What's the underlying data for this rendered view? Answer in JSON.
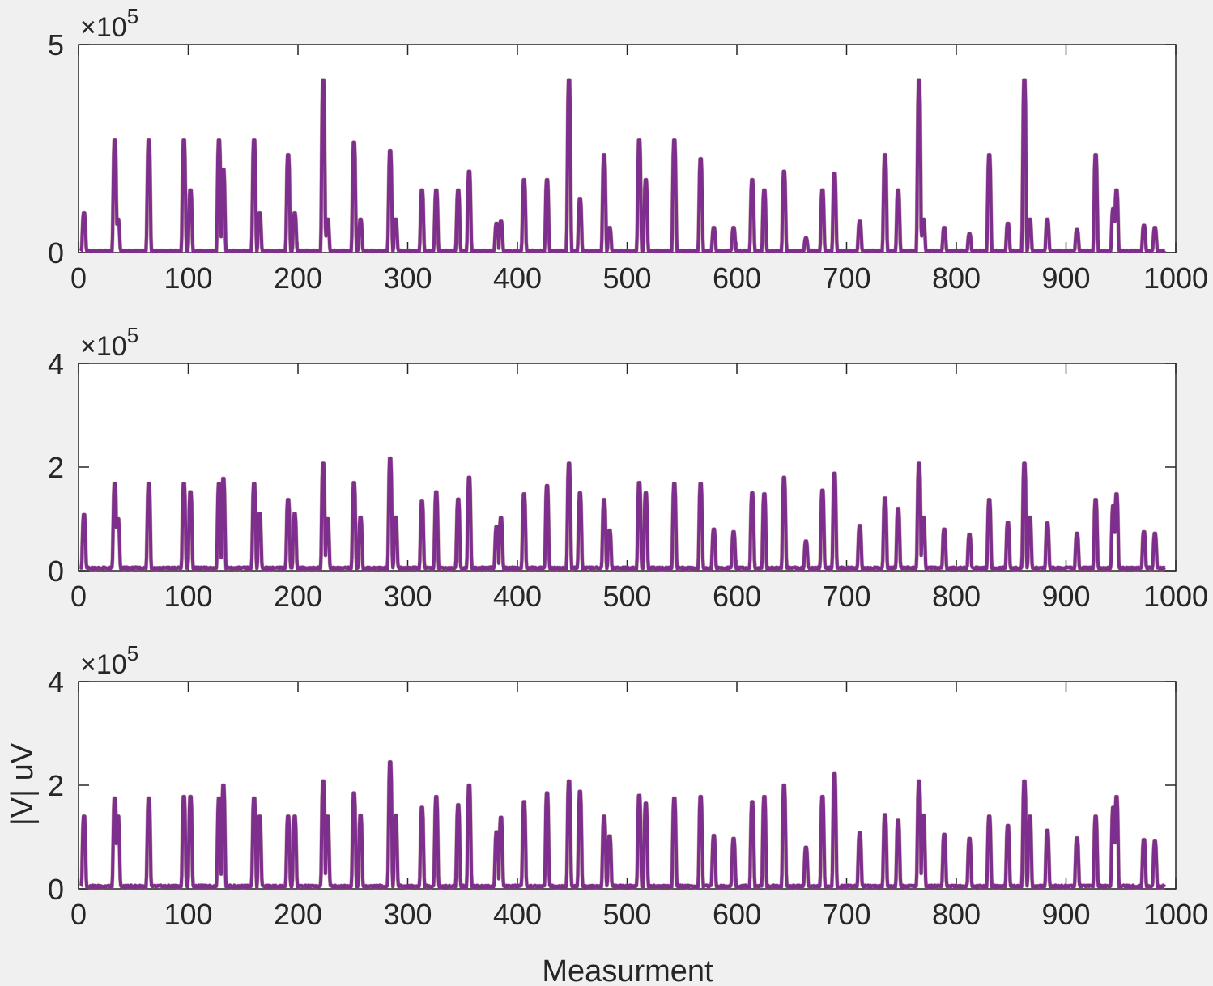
{
  "chart_data": [
    {
      "type": "line",
      "xlim": [
        0,
        1000
      ],
      "ylim": [
        0,
        500000
      ],
      "xticks": [
        "0",
        "100",
        "200",
        "300",
        "400",
        "500",
        "600",
        "700",
        "800",
        "900",
        "1000"
      ],
      "yticks": [
        "0",
        "5"
      ],
      "exponent_base": "×10",
      "exponent_power": "5",
      "xlabel": "",
      "ylabel": "",
      "series": [
        {
          "color": "#7e2f8e",
          "baseline": 4000,
          "peaks": [
            [
              5,
              95000
            ],
            [
              33,
              270000
            ],
            [
              36,
              80000
            ],
            [
              64,
              270000
            ],
            [
              96,
              270000
            ],
            [
              102,
              150000
            ],
            [
              128,
              270000
            ],
            [
              132,
              200000
            ],
            [
              160,
              270000
            ],
            [
              165,
              95000
            ],
            [
              191,
              235000
            ],
            [
              197,
              95000
            ],
            [
              223,
              415000
            ],
            [
              227,
              80000
            ],
            [
              251,
              265000
            ],
            [
              257,
              80000
            ],
            [
              284,
              245000
            ],
            [
              289,
              80000
            ],
            [
              313,
              150000
            ],
            [
              326,
              150000
            ],
            [
              346,
              150000
            ],
            [
              356,
              195000
            ],
            [
              381,
              70000
            ],
            [
              385,
              75000
            ],
            [
              406,
              175000
            ],
            [
              427,
              175000
            ],
            [
              447,
              415000
            ],
            [
              457,
              130000
            ],
            [
              479,
              235000
            ],
            [
              484,
              60000
            ],
            [
              511,
              270000
            ],
            [
              517,
              175000
            ],
            [
              543,
              270000
            ],
            [
              567,
              225000
            ],
            [
              579,
              60000
            ],
            [
              597,
              60000
            ],
            [
              614,
              175000
            ],
            [
              625,
              150000
            ],
            [
              643,
              195000
            ],
            [
              663,
              35000
            ],
            [
              678,
              150000
            ],
            [
              689,
              190000
            ],
            [
              712,
              75000
            ],
            [
              735,
              235000
            ],
            [
              747,
              150000
            ],
            [
              766,
              415000
            ],
            [
              770,
              80000
            ],
            [
              789,
              60000
            ],
            [
              812,
              45000
            ],
            [
              830,
              235000
            ],
            [
              847,
              70000
            ],
            [
              862,
              415000
            ],
            [
              867,
              80000
            ],
            [
              883,
              80000
            ],
            [
              910,
              55000
            ],
            [
              927,
              235000
            ],
            [
              943,
              105000
            ],
            [
              946,
              150000
            ],
            [
              971,
              65000
            ],
            [
              981,
              60000
            ]
          ]
        }
      ]
    },
    {
      "type": "line",
      "xlim": [
        0,
        1000
      ],
      "ylim": [
        0,
        400000
      ],
      "xticks": [
        "0",
        "100",
        "200",
        "300",
        "400",
        "500",
        "600",
        "700",
        "800",
        "900",
        "1000"
      ],
      "yticks": [
        "0",
        "2",
        "4"
      ],
      "exponent_base": "×10",
      "exponent_power": "5",
      "xlabel": "",
      "ylabel": "",
      "series": [
        {
          "color": "#7e2f8e",
          "baseline": 5000,
          "peaks": [
            [
              5,
              108000
            ],
            [
              33,
              168000
            ],
            [
              36,
              100000
            ],
            [
              64,
              168000
            ],
            [
              96,
              168000
            ],
            [
              102,
              152000
            ],
            [
              128,
              168000
            ],
            [
              132,
              178000
            ],
            [
              160,
              168000
            ],
            [
              165,
              110000
            ],
            [
              191,
              137000
            ],
            [
              197,
              110000
            ],
            [
              223,
              207000
            ],
            [
              227,
              100000
            ],
            [
              251,
              170000
            ],
            [
              257,
              103000
            ],
            [
              284,
              217000
            ],
            [
              289,
              103000
            ],
            [
              313,
              134000
            ],
            [
              326,
              152000
            ],
            [
              346,
              138000
            ],
            [
              356,
              180000
            ],
            [
              381,
              85000
            ],
            [
              385,
              102000
            ],
            [
              406,
              148000
            ],
            [
              427,
              164000
            ],
            [
              447,
              207000
            ],
            [
              457,
              150000
            ],
            [
              479,
              137000
            ],
            [
              484,
              78000
            ],
            [
              511,
              170000
            ],
            [
              517,
              150000
            ],
            [
              543,
              168000
            ],
            [
              567,
              168000
            ],
            [
              579,
              80000
            ],
            [
              597,
              75000
            ],
            [
              614,
              150000
            ],
            [
              625,
              148000
            ],
            [
              643,
              180000
            ],
            [
              663,
              57000
            ],
            [
              678,
              155000
            ],
            [
              689,
              188000
            ],
            [
              712,
              87000
            ],
            [
              735,
              140000
            ],
            [
              747,
              120000
            ],
            [
              766,
              207000
            ],
            [
              770,
              103000
            ],
            [
              789,
              80000
            ],
            [
              812,
              70000
            ],
            [
              830,
              137000
            ],
            [
              847,
              93000
            ],
            [
              862,
              207000
            ],
            [
              867,
              103000
            ],
            [
              883,
              92000
            ],
            [
              910,
              72000
            ],
            [
              927,
              137000
            ],
            [
              943,
              125000
            ],
            [
              946,
              148000
            ],
            [
              971,
              75000
            ],
            [
              981,
              72000
            ]
          ]
        }
      ]
    },
    {
      "type": "line",
      "xlim": [
        0,
        1000
      ],
      "ylim": [
        0,
        400000
      ],
      "xticks": [
        "0",
        "100",
        "200",
        "300",
        "400",
        "500",
        "600",
        "700",
        "800",
        "900",
        "1000"
      ],
      "yticks": [
        "0",
        "2",
        "4"
      ],
      "exponent_base": "×10",
      "exponent_power": "5",
      "xlabel": "Measurment",
      "ylabel": "|V| uV",
      "series": [
        {
          "color": "#7e2f8e",
          "baseline": 5000,
          "peaks": [
            [
              5,
              140000
            ],
            [
              33,
              175000
            ],
            [
              36,
              140000
            ],
            [
              64,
              175000
            ],
            [
              96,
              178000
            ],
            [
              102,
              178000
            ],
            [
              128,
              175000
            ],
            [
              132,
              200000
            ],
            [
              160,
              175000
            ],
            [
              165,
              140000
            ],
            [
              191,
              140000
            ],
            [
              197,
              140000
            ],
            [
              223,
              208000
            ],
            [
              227,
              140000
            ],
            [
              251,
              185000
            ],
            [
              257,
              142000
            ],
            [
              284,
              245000
            ],
            [
              289,
              142000
            ],
            [
              313,
              157000
            ],
            [
              326,
              178000
            ],
            [
              346,
              162000
            ],
            [
              356,
              200000
            ],
            [
              381,
              110000
            ],
            [
              385,
              138000
            ],
            [
              406,
              168000
            ],
            [
              427,
              185000
            ],
            [
              447,
              208000
            ],
            [
              457,
              188000
            ],
            [
              479,
              140000
            ],
            [
              484,
              102000
            ],
            [
              511,
              180000
            ],
            [
              517,
              165000
            ],
            [
              543,
              175000
            ],
            [
              567,
              178000
            ],
            [
              579,
              103000
            ],
            [
              597,
              97000
            ],
            [
              614,
              168000
            ],
            [
              625,
              178000
            ],
            [
              643,
              200000
            ],
            [
              663,
              80000
            ],
            [
              678,
              178000
            ],
            [
              689,
              222000
            ],
            [
              712,
              108000
            ],
            [
              735,
              143000
            ],
            [
              747,
              132000
            ],
            [
              766,
              208000
            ],
            [
              770,
              142000
            ],
            [
              789,
              105000
            ],
            [
              812,
              97000
            ],
            [
              830,
              140000
            ],
            [
              847,
              122000
            ],
            [
              862,
              208000
            ],
            [
              867,
              140000
            ],
            [
              883,
              113000
            ],
            [
              910,
              98000
            ],
            [
              927,
              140000
            ],
            [
              943,
              157000
            ],
            [
              946,
              178000
            ],
            [
              971,
              95000
            ],
            [
              981,
              92000
            ]
          ]
        }
      ]
    }
  ]
}
